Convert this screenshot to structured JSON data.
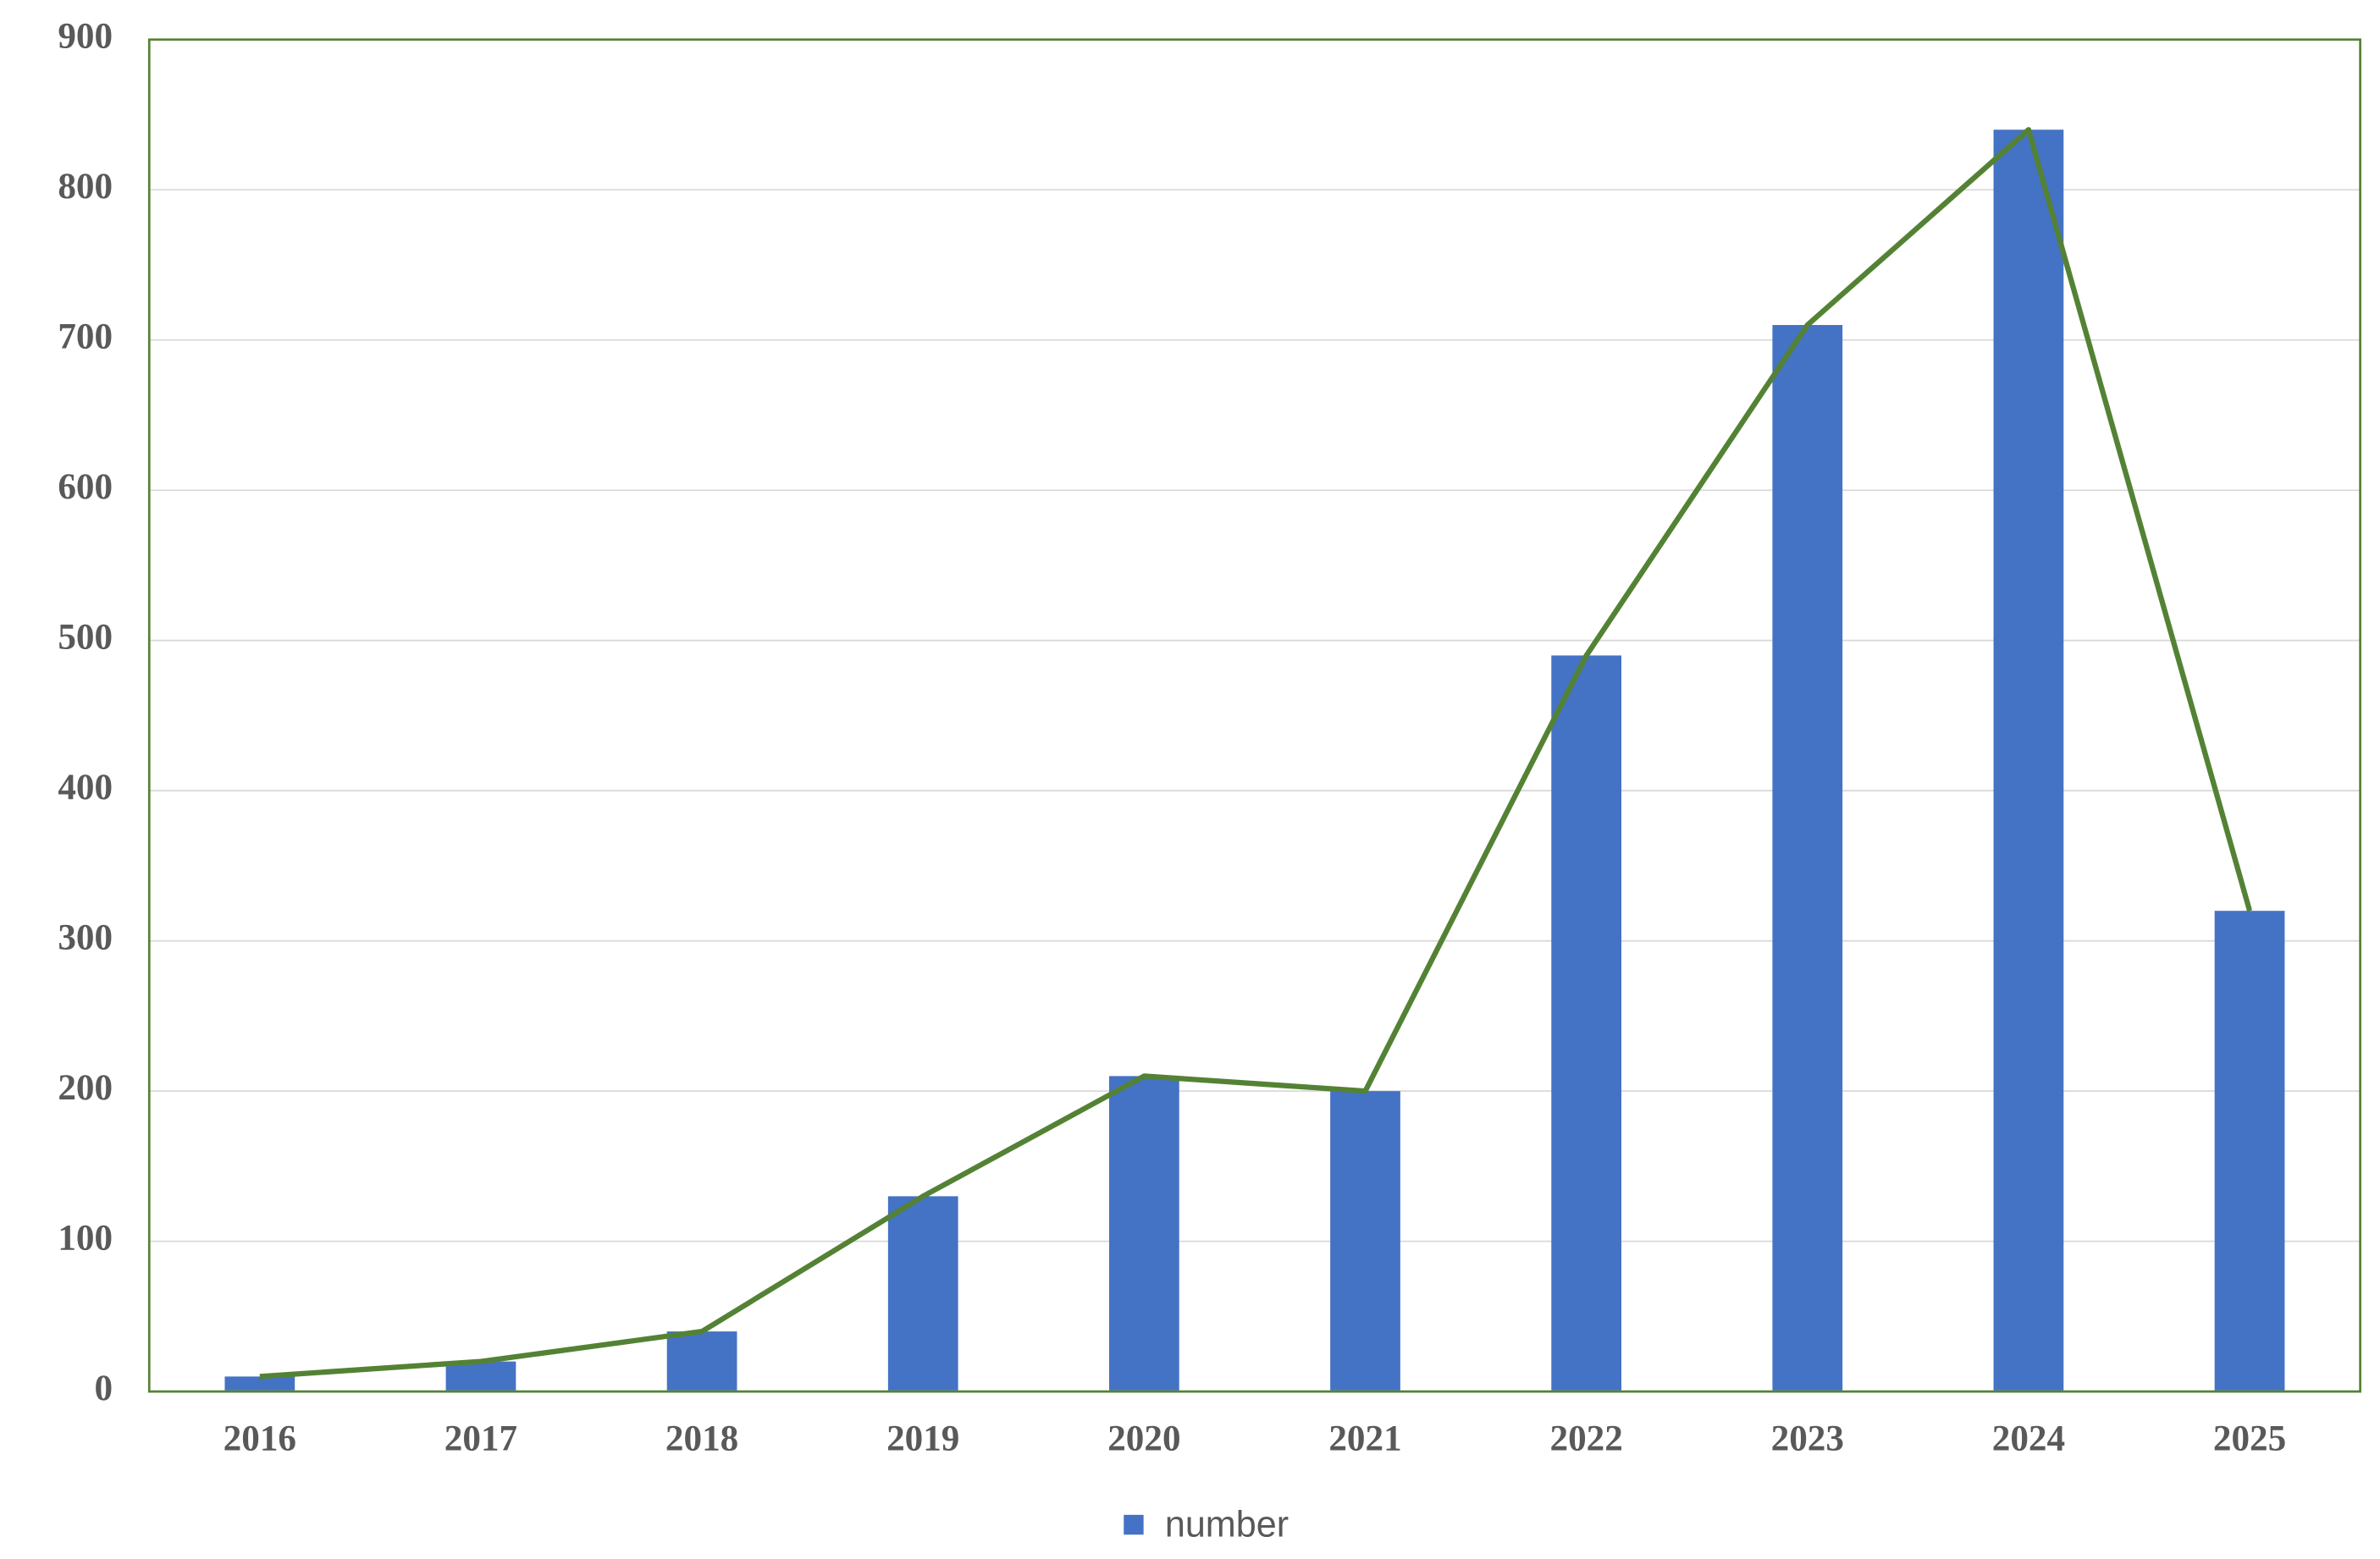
{
  "chart_data": {
    "type": "bar",
    "categories": [
      "2016",
      "2017",
      "2018",
      "2019",
      "2020",
      "2021",
      "2022",
      "2023",
      "2024",
      "2025"
    ],
    "series": [
      {
        "name": "number",
        "color": "#4472c4",
        "values": [
          10,
          20,
          40,
          130,
          210,
          200,
          490,
          710,
          840,
          320
        ]
      },
      {
        "type": "line",
        "color": "#548235",
        "values": [
          10,
          20,
          40,
          130,
          210,
          200,
          490,
          710,
          840,
          320
        ]
      }
    ],
    "ylim": [
      0,
      900
    ],
    "yticks": [
      0,
      100,
      200,
      300,
      400,
      500,
      600,
      700,
      800,
      900
    ],
    "grid": true,
    "legend": "bottom"
  }
}
